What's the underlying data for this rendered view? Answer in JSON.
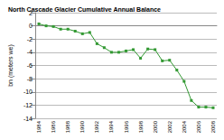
{
  "chart_data": {
    "type": "line",
    "title": "North Cascade Glacier Cumulative Annual Balance",
    "y_label": "bn (meters we)",
    "categories": [
      "1984",
      null,
      "1986",
      null,
      "1988",
      null,
      "1990",
      null,
      "1992",
      null,
      "1994",
      null,
      "1996",
      null,
      "1998",
      null,
      "2000",
      null,
      "2002",
      null,
      "2004",
      null,
      "2006",
      null,
      "2008"
    ],
    "values": [
      0.3,
      0.0,
      -0.1,
      -0.5,
      -0.5,
      -0.8,
      -1.2,
      -1.0,
      -2.7,
      -3.3,
      -4.0,
      -4.0,
      -3.8,
      -3.6,
      -4.9,
      -3.5,
      -3.6,
      -5.3,
      -5.2,
      -6.7,
      -8.4,
      -11.3,
      -12.3,
      -12.3,
      -12.4
    ],
    "color": "#339933",
    "marker": "square",
    "line_style": "solid",
    "ylim": [
      -14,
      2
    ],
    "yticks": [
      -14,
      -12,
      -10,
      -8,
      -6,
      -4,
      -2,
      0,
      2
    ],
    "grid": true
  }
}
